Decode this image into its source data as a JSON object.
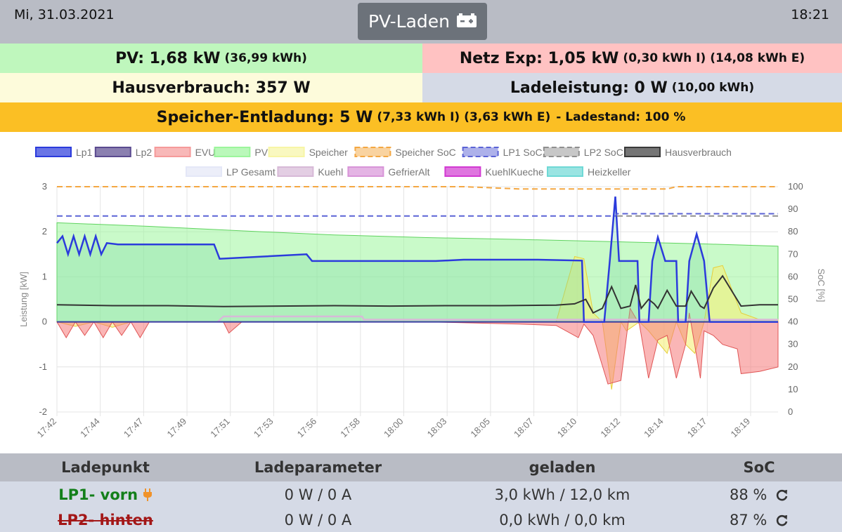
{
  "header": {
    "date": "Mi, 31.03.2021",
    "time": "18:21",
    "mode_button": "PV-Laden",
    "mode_icon": "battery-icon"
  },
  "info": {
    "pv_main": "PV: 1,68 kW",
    "pv_sub": "(36,99 kWh)",
    "netz_main": "Netz Exp: 1,05 kW",
    "netz_sub_import": "(0,30 kWh I)",
    "netz_sub_export": "(14,08 kWh E)",
    "haus": "Hausverbrauch: 357 W",
    "lade_main": "Ladeleistung: 0 W",
    "lade_sub": "(10,00 kWh)",
    "speicher_main": "Speicher-Entladung: 5 W",
    "speicher_sub_import": "(7,33 kWh I)",
    "speicher_sub_export": "(3,63 kWh E)",
    "speicher_soc": "- Ladestand: 100 %"
  },
  "colors": {
    "header_bg": "#b9bcc5",
    "pv_bg": "#bff7bd",
    "netz_bg": "#ffc2c2",
    "haus_bg": "#fdfbdb",
    "lade_bg": "#d5dae6",
    "speicher_bg": "#fbbf24",
    "button_bg": "#6c727a"
  },
  "chart_data": {
    "type": "line",
    "ylabel": "Leistung [kW]",
    "y2label": "SoC [%]",
    "ylim": [
      -2,
      3
    ],
    "y2lim": [
      0,
      100
    ],
    "yticks": [
      "3",
      "2",
      "1",
      "0",
      "-1",
      "-2"
    ],
    "y2ticks": [
      "100",
      "90",
      "80",
      "70",
      "60",
      "50",
      "40",
      "30",
      "20",
      "10",
      "0"
    ],
    "xticks": [
      "17:42",
      "17:44",
      "17:47",
      "17:49",
      "17:51",
      "17:53",
      "17:56",
      "17:58",
      "18:00",
      "18:03",
      "18:05",
      "18:07",
      "18:10",
      "18:12",
      "18:14",
      "18:17",
      "18:19"
    ],
    "legend": [
      {
        "name": "Lp1",
        "color": "#2b3bdc",
        "dashed": false
      },
      {
        "name": "Lp2",
        "color": "#5a4a8f",
        "dashed": false
      },
      {
        "name": "EVU",
        "color": "#f59a9a",
        "dashed": false
      },
      {
        "name": "PV",
        "color": "#9cf59c",
        "dashed": false
      },
      {
        "name": "Speicher",
        "color": "#f7f5a5",
        "dashed": false
      },
      {
        "name": "Speicher SoC",
        "color": "#f4a742",
        "dashed": true
      },
      {
        "name": "LP1 SoC",
        "color": "#5b63d6",
        "dashed": true
      },
      {
        "name": "LP2 SoC",
        "color": "#8f8f8f",
        "dashed": true
      },
      {
        "name": "Hausverbrauch",
        "color": "#3a3a3a",
        "dashed": false
      },
      {
        "name": "LP Gesamt",
        "color": "#e4e7f7",
        "dashed": false
      },
      {
        "name": "Kuehl",
        "color": "#d7b9d7",
        "dashed": false
      },
      {
        "name": "GefrierAlt",
        "color": "#d894d8",
        "dashed": false
      },
      {
        "name": "KuehlKueche",
        "color": "#d23ad2",
        "dashed": false
      },
      {
        "name": "Heizkeller",
        "color": "#6fd9d6",
        "dashed": false
      }
    ],
    "series": [
      {
        "name": "PV",
        "x": [
          0,
          5,
          10,
          15,
          20,
          25,
          30,
          35,
          39
        ],
        "values": [
          2.2,
          2.12,
          2.02,
          1.93,
          1.87,
          1.83,
          1.78,
          1.73,
          1.68
        ]
      },
      {
        "name": "Lp1",
        "x": [
          0,
          0.3,
          0.6,
          0.9,
          1.2,
          1.5,
          1.8,
          2.1,
          2.4,
          2.7,
          3.3,
          8.5,
          8.8,
          13.5,
          13.8,
          20.5,
          22,
          26,
          28.4,
          28.5,
          29.6,
          29.9,
          30.2,
          30.4,
          30.8,
          31.4,
          31.5,
          32,
          32.2,
          32.5,
          32.9,
          33.5,
          33.6,
          34,
          34.2,
          34.6,
          35,
          35.3,
          38,
          39
        ],
        "values": [
          1.75,
          1.9,
          1.5,
          1.9,
          1.5,
          1.9,
          1.5,
          1.9,
          1.5,
          1.75,
          1.72,
          1.72,
          1.4,
          1.5,
          1.35,
          1.35,
          1.38,
          1.38,
          1.36,
          0,
          0,
          1.35,
          2.78,
          1.35,
          1.35,
          1.35,
          0,
          0,
          1.35,
          1.88,
          1.35,
          1.35,
          0,
          0,
          1.35,
          1.95,
          1.35,
          0,
          0,
          0
        ]
      },
      {
        "name": "Hausverbrauch",
        "x": [
          0,
          3,
          6,
          9,
          12,
          15,
          18,
          21,
          24,
          27,
          28,
          28.6,
          29,
          29.5,
          30,
          30.5,
          31,
          31.3,
          31.6,
          32,
          32.3,
          32.5,
          33,
          33.5,
          34,
          34.3,
          34.8,
          35,
          35.5,
          36,
          37,
          38,
          39
        ],
        "values": [
          0.38,
          0.36,
          0.36,
          0.34,
          0.35,
          0.36,
          0.35,
          0.36,
          0.36,
          0.37,
          0.4,
          0.5,
          0.2,
          0.3,
          0.78,
          0.3,
          0.35,
          0.82,
          0.3,
          0.5,
          0.4,
          0.3,
          0.7,
          0.35,
          0.35,
          0.68,
          0.35,
          0.3,
          0.75,
          1.02,
          0.35,
          0.38,
          0.38
        ]
      },
      {
        "name": "EVU",
        "x": [
          0,
          0.5,
          1,
          1.5,
          2,
          2.5,
          3,
          3.5,
          4,
          4.5,
          5,
          9,
          9.3,
          10,
          20,
          25,
          27,
          28.2,
          28.5,
          29,
          29.8,
          30.5,
          31,
          31.5,
          32,
          32.5,
          33,
          33.5,
          34,
          34.2,
          34.8,
          35,
          35.5,
          36,
          36.8,
          37,
          38,
          39
        ],
        "values": [
          0,
          -0.35,
          0,
          -0.3,
          0,
          -0.35,
          0,
          -0.3,
          0,
          -0.35,
          0,
          0,
          -0.25,
          0,
          0,
          -0.05,
          -0.08,
          -0.35,
          -0.05,
          -0.3,
          -1.38,
          -1.3,
          0.3,
          -0.05,
          -1.25,
          -0.4,
          -0.3,
          -1.25,
          -0.5,
          0.2,
          -1.25,
          -0.2,
          -0.3,
          -0.5,
          -0.6,
          -1.15,
          -1.1,
          -1.0
        ]
      },
      {
        "name": "Speicher",
        "x": [
          0,
          1,
          2,
          3,
          4,
          27,
          28,
          28.5,
          29,
          29.5,
          30,
          30.5,
          30.8,
          31.5,
          32,
          33,
          33.5,
          34,
          34.5,
          35,
          35.5,
          36,
          37,
          38,
          39
        ],
        "values": [
          0,
          -0.1,
          0,
          -0.12,
          0,
          0,
          1.45,
          1.4,
          0.2,
          0,
          -1.5,
          0,
          -0.2,
          0,
          -0.2,
          -0.7,
          0,
          -0.5,
          -0.7,
          0,
          1.2,
          1.25,
          0.2,
          0.05,
          0.05
        ]
      },
      {
        "name": "Kuehl",
        "x": [
          8.7,
          9,
          16.5,
          16.6,
          39
        ],
        "values": [
          0.0,
          0.12,
          0.12,
          0.05,
          0.05
        ]
      },
      {
        "name": "Speicher SoC",
        "x": [
          0,
          22,
          25,
          33,
          33.5,
          39
        ],
        "values": [
          100,
          100,
          99,
          99,
          100,
          100
        ]
      },
      {
        "name": "LP1 SoC",
        "x": [
          0,
          30.2,
          30.3,
          39
        ],
        "values": [
          87,
          87,
          88,
          88
        ]
      },
      {
        "name": "LP2 SoC",
        "x": [
          30.3,
          39
        ],
        "values": [
          87,
          87
        ]
      }
    ]
  },
  "table": {
    "headers": [
      "Ladepunkt",
      "Ladeparameter",
      "geladen",
      "SoC"
    ],
    "rows": [
      {
        "name": "LP1- vorn",
        "plug_icon": "plug-icon",
        "param": "0 W / 0 A",
        "charged": "3,0 kWh / 12,0 km",
        "soc": "88 %",
        "refresh_icon": "refresh-icon"
      },
      {
        "name": "LP2- hinten",
        "param": "0 W / 0 A",
        "charged": "0,0 kWh / 0,0 km",
        "soc": "87 %",
        "refresh_icon": "refresh-icon"
      }
    ]
  }
}
